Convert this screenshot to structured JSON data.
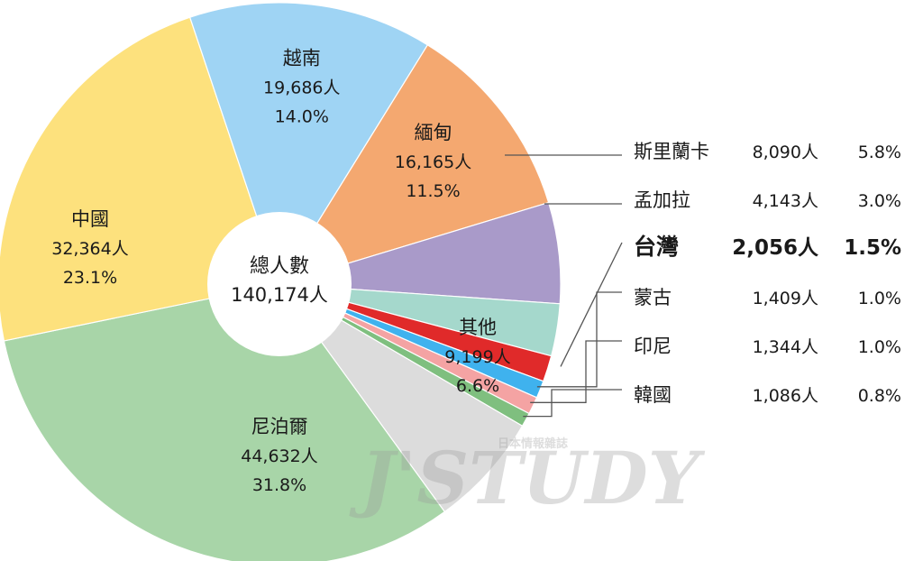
{
  "chart_data": {
    "type": "pie",
    "donut": true,
    "center_label": {
      "title": "總人數",
      "total": "140,174人"
    },
    "slices": [
      {
        "name": "尼泊爾",
        "count": "44,632人",
        "value": 31.8,
        "percent": "31.8%",
        "color": "#a8d5a8"
      },
      {
        "name": "中國",
        "count": "32,364人",
        "value": 23.1,
        "percent": "23.1%",
        "color": "#fde17d"
      },
      {
        "name": "越南",
        "count": "19,686人",
        "value": 14.0,
        "percent": "14.0%",
        "color": "#9fd4f4"
      },
      {
        "name": "緬甸",
        "count": "16,165人",
        "value": 11.5,
        "percent": "11.5%",
        "color": "#f4a870"
      },
      {
        "name": "斯里蘭卡",
        "count": "8,090人",
        "value": 5.8,
        "percent": "5.8%",
        "color": "#a99ac9"
      },
      {
        "name": "孟加拉",
        "count": "4,143人",
        "value": 3.0,
        "percent": "3.0%",
        "color": "#a5d8cc"
      },
      {
        "name": "台灣",
        "count": "2,056人",
        "value": 1.5,
        "percent": "1.5%",
        "color": "#e02a2a",
        "highlight": true
      },
      {
        "name": "蒙古",
        "count": "1,409人",
        "value": 1.0,
        "percent": "1.0%",
        "color": "#3fb2ee"
      },
      {
        "name": "印尼",
        "count": "1,344人",
        "value": 1.0,
        "percent": "1.0%",
        "color": "#f4a3a3"
      },
      {
        "name": "韓國",
        "count": "1,086人",
        "value": 0.8,
        "percent": "0.8%",
        "color": "#7fbf7f"
      },
      {
        "name": "其他",
        "count": "9,199人",
        "value": 6.6,
        "percent": "6.6%",
        "color": "#dcdcdc"
      }
    ],
    "legend_placement": "right"
  },
  "watermark": {
    "logo": "J'STUDY",
    "tagline": "日本情報雜誌"
  }
}
